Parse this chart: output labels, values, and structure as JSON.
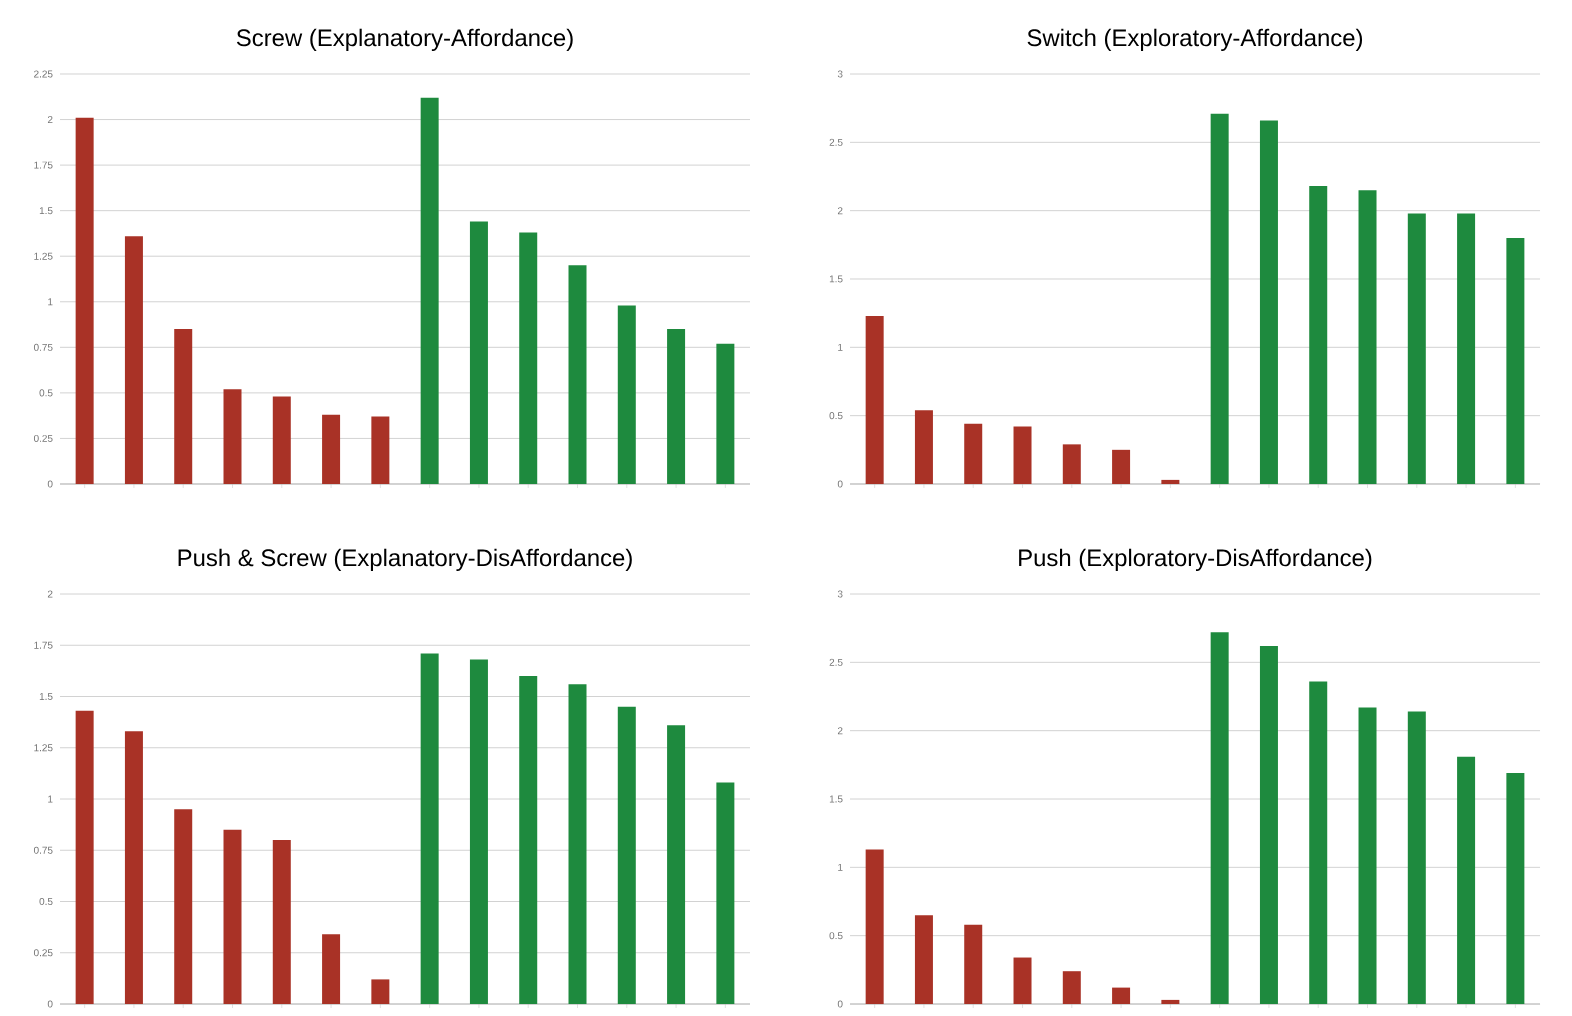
{
  "chart_data": [
    {
      "type": "bar",
      "title": "Screw (Explanatory-Affordance)",
      "categories": [
        null,
        null,
        null,
        null,
        null,
        null,
        null,
        null,
        null,
        null,
        null,
        null,
        null,
        null
      ],
      "values": [
        2.01,
        1.36,
        0.85,
        0.52,
        0.48,
        0.38,
        0.37,
        2.12,
        1.44,
        1.38,
        1.2,
        0.98,
        0.85,
        0.77
      ],
      "colors": [
        "#a93226",
        "#a93226",
        "#a93226",
        "#a93226",
        "#a93226",
        "#a93226",
        "#a93226",
        "#1e8a3e",
        "#1e8a3e",
        "#1e8a3e",
        "#1e8a3e",
        "#1e8a3e",
        "#1e8a3e",
        "#1e8a3e"
      ],
      "ylim": [
        0,
        2.25
      ],
      "yticks": [
        0,
        0.25,
        0.5,
        0.75,
        1,
        1.25,
        1.5,
        1.75,
        2,
        2.25
      ],
      "grid": "y"
    },
    {
      "type": "bar",
      "title": "Switch (Exploratory-Affordance)",
      "categories": [
        null,
        null,
        null,
        null,
        null,
        null,
        null,
        null,
        null,
        null,
        null,
        null,
        null,
        null
      ],
      "values": [
        1.23,
        0.54,
        0.44,
        0.42,
        0.29,
        0.25,
        0.03,
        2.71,
        2.66,
        2.18,
        2.15,
        1.98,
        1.98,
        1.8
      ],
      "colors": [
        "#a93226",
        "#a93226",
        "#a93226",
        "#a93226",
        "#a93226",
        "#a93226",
        "#a93226",
        "#1e8a3e",
        "#1e8a3e",
        "#1e8a3e",
        "#1e8a3e",
        "#1e8a3e",
        "#1e8a3e",
        "#1e8a3e"
      ],
      "ylim": [
        0,
        3
      ],
      "yticks": [
        0,
        0.5,
        1,
        1.5,
        2,
        2.5,
        3
      ],
      "grid": "y"
    },
    {
      "type": "bar",
      "title": "Push & Screw (Explanatory-DisAffordance)",
      "categories": [
        null,
        null,
        null,
        null,
        null,
        null,
        null,
        null,
        null,
        null,
        null,
        null,
        null,
        null
      ],
      "values": [
        1.43,
        1.33,
        0.95,
        0.85,
        0.8,
        0.34,
        0.12,
        1.71,
        1.68,
        1.6,
        1.56,
        1.45,
        1.36,
        1.08
      ],
      "colors": [
        "#a93226",
        "#a93226",
        "#a93226",
        "#a93226",
        "#a93226",
        "#a93226",
        "#a93226",
        "#1e8a3e",
        "#1e8a3e",
        "#1e8a3e",
        "#1e8a3e",
        "#1e8a3e",
        "#1e8a3e",
        "#1e8a3e"
      ],
      "ylim": [
        0,
        2
      ],
      "yticks": [
        0,
        0.25,
        0.5,
        0.75,
        1,
        1.25,
        1.5,
        1.75,
        2
      ],
      "grid": "y"
    },
    {
      "type": "bar",
      "title": "Push (Exploratory-DisAffordance)",
      "categories": [
        null,
        null,
        null,
        null,
        null,
        null,
        null,
        null,
        null,
        null,
        null,
        null,
        null,
        null
      ],
      "values": [
        1.13,
        0.65,
        0.58,
        0.34,
        0.24,
        0.12,
        0.03,
        2.72,
        2.62,
        2.36,
        2.17,
        2.14,
        1.81,
        1.69
      ],
      "colors": [
        "#a93226",
        "#a93226",
        "#a93226",
        "#a93226",
        "#a93226",
        "#a93226",
        "#a93226",
        "#1e8a3e",
        "#1e8a3e",
        "#1e8a3e",
        "#1e8a3e",
        "#1e8a3e",
        "#1e8a3e",
        "#1e8a3e"
      ],
      "ylim": [
        0,
        3
      ],
      "yticks": [
        0,
        0.5,
        1,
        1.5,
        2,
        2.5,
        3
      ],
      "grid": "y"
    }
  ]
}
